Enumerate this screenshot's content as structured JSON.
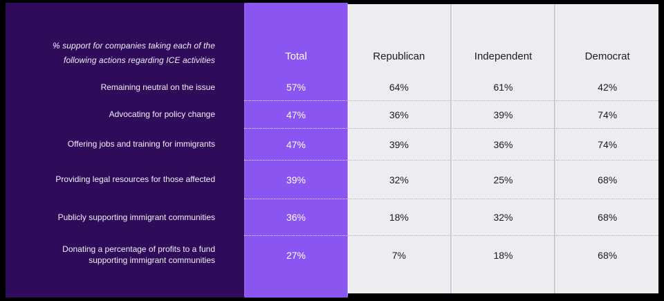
{
  "colors": {
    "frame": "#000000",
    "panel_background": "#2e0c5a",
    "total_column_background": "#8b55f2",
    "breakdown_column_background": "#ededf1",
    "light_text": "#f3eefc",
    "dark_text": "#1b1b1d"
  },
  "chart_data": {
    "type": "table",
    "title": "% support for companies taking each of the following actions regarding ICE activities",
    "caption_line1": "% support for companies taking each of the",
    "caption_line2": "following actions regarding ICE activities",
    "unit": "%",
    "columns": [
      {
        "id": "total",
        "label": "Total"
      },
      {
        "id": "republican",
        "label": "Republican"
      },
      {
        "id": "independent",
        "label": "Independent"
      },
      {
        "id": "democrat",
        "label": "Democrat"
      }
    ],
    "categories": [
      "Remaining neutral on the issue",
      "Advocating for policy change",
      "Offering jobs and training for immigrants",
      "Providing legal resources for those affected",
      "Publicly supporting immigrant communities",
      "Donating a percentage of profits to a fund supporting immigrant communities"
    ],
    "series": [
      {
        "name": "Total",
        "values": [
          57,
          47,
          47,
          39,
          36,
          27
        ]
      },
      {
        "name": "Republican",
        "values": [
          64,
          36,
          39,
          32,
          18,
          7
        ]
      },
      {
        "name": "Independent",
        "values": [
          61,
          39,
          36,
          25,
          32,
          18
        ]
      },
      {
        "name": "Democrat",
        "values": [
          42,
          74,
          74,
          68,
          68,
          68
        ]
      }
    ],
    "rows": [
      {
        "label": "Remaining neutral on the issue",
        "display": {
          "total": "57%",
          "republican": "64%",
          "independent": "61%",
          "democrat": "42%"
        }
      },
      {
        "label": "Advocating for policy change",
        "display": {
          "total": "47%",
          "republican": "36%",
          "independent": "39%",
          "democrat": "74%"
        }
      },
      {
        "label": "Offering jobs and training for immigrants",
        "display": {
          "total": "47%",
          "republican": "39%",
          "independent": "36%",
          "democrat": "74%"
        }
      },
      {
        "label": "Providing legal resources for those affected",
        "display": {
          "total": "39%",
          "republican": "32%",
          "independent": "25%",
          "democrat": "68%"
        }
      },
      {
        "label": "Publicly supporting immigrant communities",
        "display": {
          "total": "36%",
          "republican": "18%",
          "independent": "32%",
          "democrat": "68%"
        }
      },
      {
        "label": "Donating a percentage of profits to a fund supporting immigrant communities",
        "display": {
          "total": "27%",
          "republican": "7%",
          "independent": "18%",
          "democrat": "68%"
        }
      }
    ]
  }
}
